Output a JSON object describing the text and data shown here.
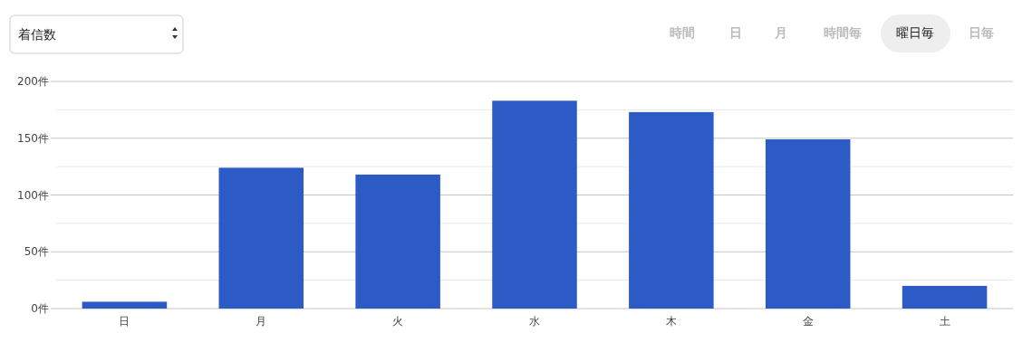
{
  "chart_data": {
    "type": "bar",
    "categories": [
      "日",
      "月",
      "火",
      "水",
      "木",
      "金",
      "土"
    ],
    "values": [
      6,
      124,
      118,
      183,
      173,
      149,
      20
    ],
    "color": "#2d5bc6",
    "ylim": [
      0,
      200
    ],
    "yticks": [
      {
        "value": 0,
        "label": "0件"
      },
      {
        "value": 25,
        "label": null
      },
      {
        "value": 50,
        "label": "50件"
      },
      {
        "value": 75,
        "label": null
      },
      {
        "value": 100,
        "label": "100件"
      },
      {
        "value": 125,
        "label": null
      },
      {
        "value": 150,
        "label": "150件"
      },
      {
        "value": 175,
        "label": null
      },
      {
        "value": 200,
        "label": "200件"
      }
    ],
    "grid": "y",
    "annotations": [
      "着信数",
      "時間",
      "日",
      "月",
      "時間毎",
      "曜日毎",
      "日毎"
    ]
  }
}
